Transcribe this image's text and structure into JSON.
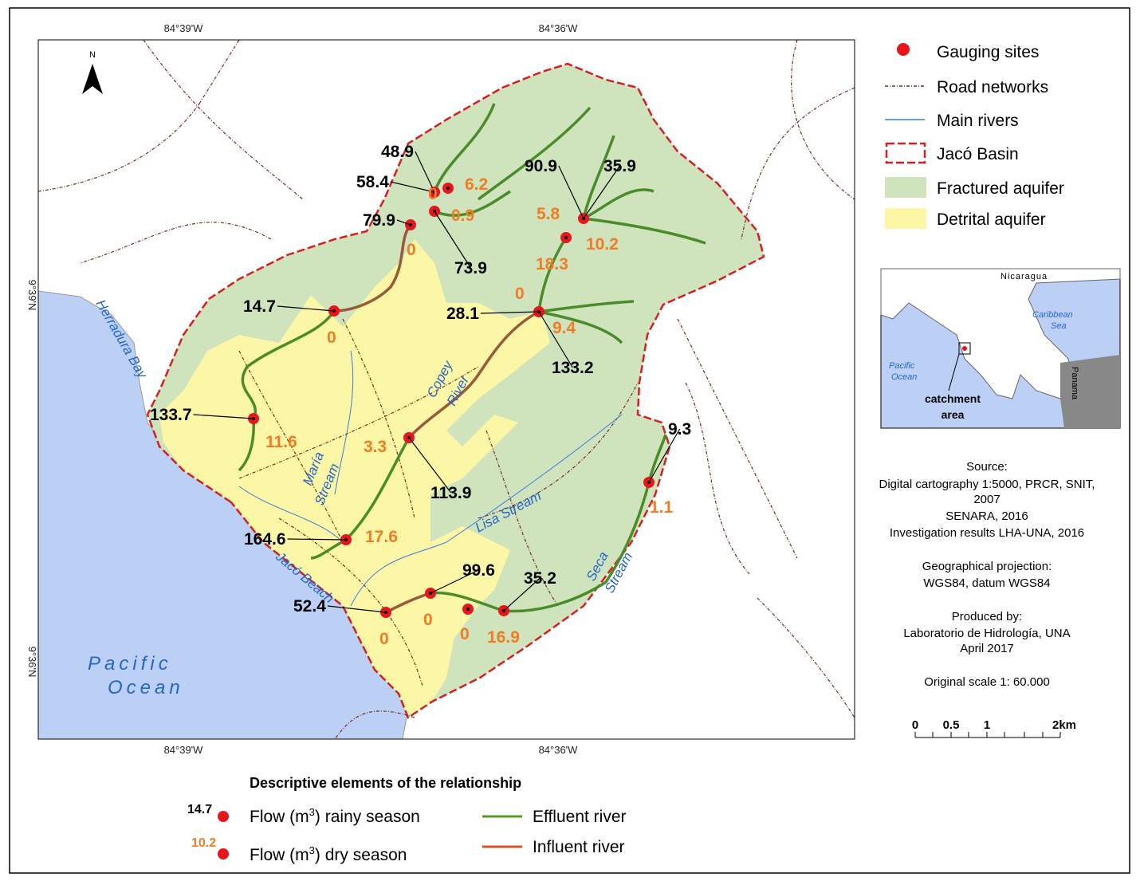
{
  "coords": {
    "lon": [
      "84°39'W",
      "84°36'W"
    ],
    "lat": [
      "9°39'N",
      "9°36'N"
    ]
  },
  "north": "N",
  "places": {
    "herradura_bay": "Herradura Bay",
    "river_name": [
      "Copey",
      "River"
    ],
    "maria": [
      "María",
      "Stream"
    ],
    "lisa": "Lisa Stream",
    "seca": [
      "Seca",
      "Stream"
    ],
    "jaco_beach": "Jacó Beach",
    "pacific_ocean": [
      "Pacific",
      "Ocean"
    ]
  },
  "rainy_labels": [
    "48.9",
    "58.4",
    "79.9",
    "73.9",
    "90.9",
    "35.9",
    "14.7",
    "28.1",
    "133.2",
    "133.7",
    "113.9",
    "9.3",
    "164.6",
    "99.6",
    "35.2",
    "52.4"
  ],
  "dry_labels": [
    "0",
    "6.2",
    "0.9",
    "0",
    "5.8",
    "10.2",
    "18.3",
    "0",
    "9.4",
    "0",
    "11.6",
    "3.3",
    "1.1",
    "17.6",
    "0",
    "0",
    "16.9",
    "0"
  ],
  "legend": [
    "Gauging sites",
    "Road networks",
    "Main rivers",
    "Jacó Basin",
    "Fractured aquifer",
    "Detrital aquifer"
  ],
  "inset": {
    "nicaragua": "Nicaragua",
    "caribbean": [
      "Caribbean",
      "Sea"
    ],
    "pacific": [
      "Pacific",
      "Ocean"
    ],
    "panama": "Panama",
    "catchment": [
      "catchment",
      "area"
    ]
  },
  "source": [
    "Source:",
    "Digital cartography 1:5000, PRCR, SNIT,",
    "2007",
    "SENARA, 2016",
    "Investigation results LHA-UNA, 2016",
    "Geographical projection:",
    "WGS84, datum WGS84",
    "Produced by:",
    "Laboratorio de Hidrología, UNA",
    "April 2017",
    "Original scale 1: 60.000"
  ],
  "scale": [
    "0",
    "0.5",
    "1",
    "2km"
  ],
  "relation": {
    "title": "Descriptive elements of the relationship",
    "rainy_example": "14.7",
    "dry_example": "10.2",
    "rainy": [
      "Flow (m",
      "3",
      ") rainy season"
    ],
    "dry": [
      "Flow (m",
      "3",
      ") dry season"
    ],
    "effluent": "Effluent river",
    "influent": "Influent river"
  }
}
